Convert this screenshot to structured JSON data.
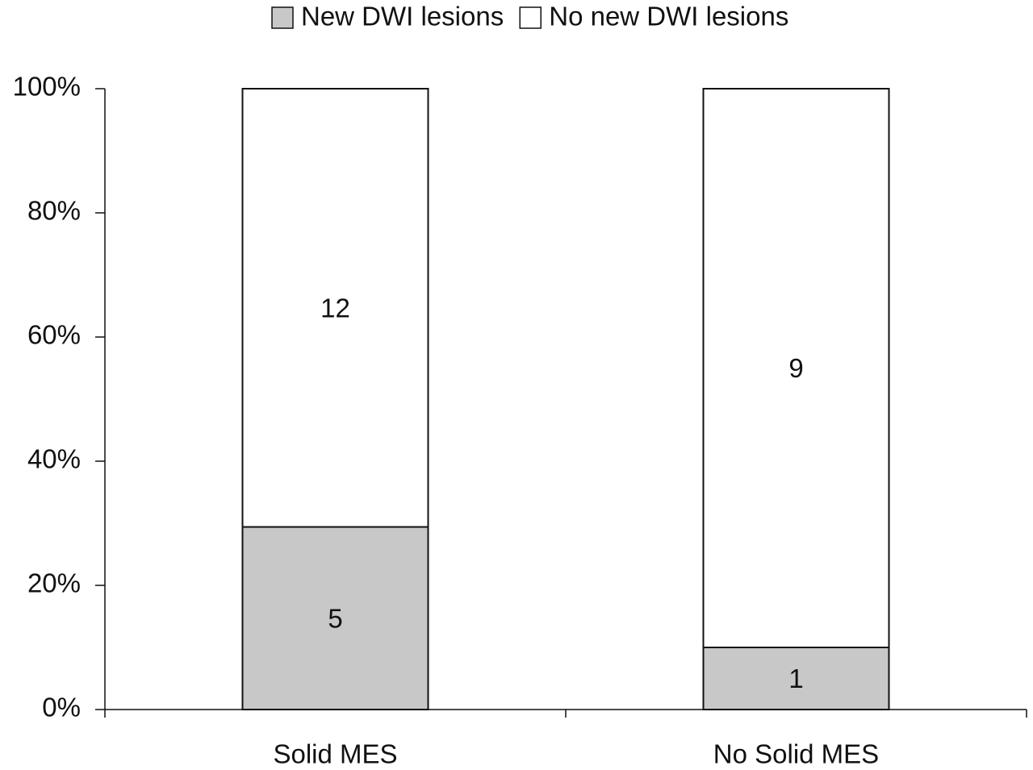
{
  "chart_data": {
    "type": "bar",
    "stacking": "percent",
    "categories": [
      "Solid MES",
      "No Solid MES"
    ],
    "series": [
      {
        "name": "New DWI lesions",
        "color": "#c8c8c8",
        "values": [
          5,
          1
        ]
      },
      {
        "name": "No new DWI lesions",
        "color": "#ffffff",
        "values": [
          12,
          9
        ]
      }
    ],
    "ylim": [
      0,
      100
    ],
    "yticks": [
      {
        "value": 0,
        "label": "0%"
      },
      {
        "value": 20,
        "label": "20%"
      },
      {
        "value": 40,
        "label": "40%"
      },
      {
        "value": 60,
        "label": "60%"
      },
      {
        "value": 80,
        "label": "80%"
      },
      {
        "value": 100,
        "label": "100%"
      }
    ],
    "legend": "top"
  }
}
